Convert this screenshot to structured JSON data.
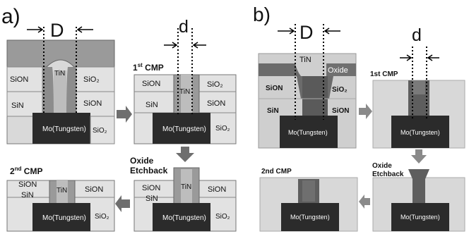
{
  "panel_a": {
    "label": "a)",
    "dim_D": "D",
    "dim_d": "d",
    "step1": {
      "cmp_prefix": "1",
      "cmp_sup": "st",
      "cmp_suffix": " CMP"
    },
    "step2": {
      "line1": "Oxide",
      "line2": "Etchback"
    },
    "step3": {
      "cmp_prefix": "2",
      "cmp_sup": "nd",
      "cmp_suffix": " CMP"
    },
    "materials": {
      "sion": "SiON",
      "sio2": "SiO₂",
      "sin": "SiN",
      "tin": "TiN",
      "mo": "Mo(Tungsten)"
    }
  },
  "panel_b": {
    "label": "b)",
    "dim_D": "D",
    "dim_d": "d",
    "step1": {
      "text": "1st CMP"
    },
    "step2": {
      "line1": "Oxide",
      "line2": "Etchback"
    },
    "step3": {
      "text": "2nd CMP"
    },
    "materials": {
      "tin": "TiN",
      "oxide": "Oxide",
      "sion": "SiON",
      "sio2": "SiO₂",
      "sin": "SiN",
      "mo": "Mo(Tungsten)"
    }
  },
  "colors": {
    "arrow": "#6e6e6e",
    "dark_block": "#2b2b2b",
    "light_layer": "#d6d6d6",
    "tin_fill": "#a9a9a9"
  }
}
